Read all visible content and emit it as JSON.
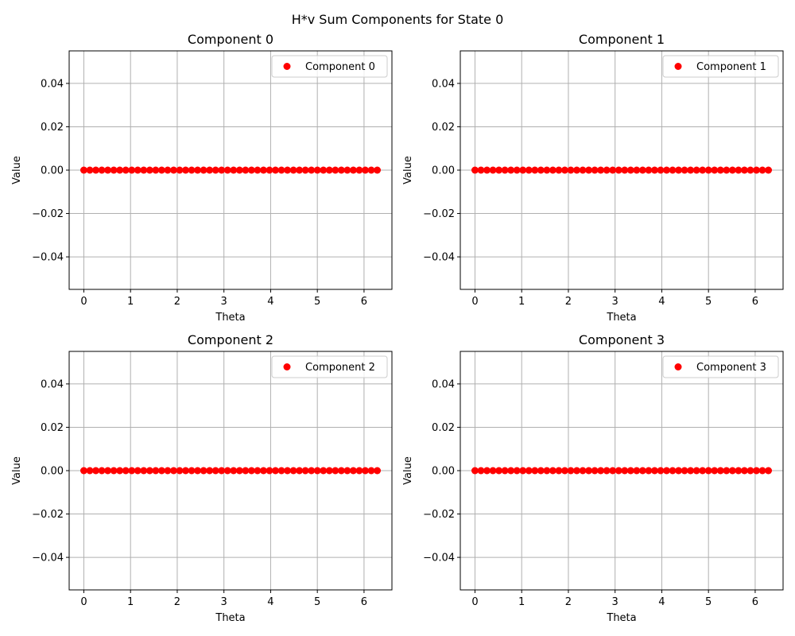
{
  "figure": {
    "title": "H*v Sum Components for State 0"
  },
  "chart_data": [
    {
      "type": "scatter",
      "title": "Component 0",
      "xlabel": "Theta",
      "ylabel": "Value",
      "xlim": [
        -0.3142,
        6.5973
      ],
      "ylim": [
        -0.055,
        0.055
      ],
      "xticks": [
        0,
        1,
        2,
        3,
        4,
        5,
        6
      ],
      "xtick_labels": [
        "0",
        "1",
        "2",
        "3",
        "4",
        "5",
        "6"
      ],
      "yticks": [
        -0.04,
        -0.02,
        0.0,
        0.02,
        0.04
      ],
      "ytick_labels": [
        "−0.04",
        "−0.02",
        "0.00",
        "0.02",
        "0.04"
      ],
      "grid": true,
      "legend_position": "top-right",
      "series": [
        {
          "name": "Component 0",
          "color": "#ff0000",
          "marker": "circle",
          "x_range": [
            0,
            6.2832
          ],
          "n_points": 50,
          "y_constant": 0.0
        }
      ]
    },
    {
      "type": "scatter",
      "title": "Component 1",
      "xlabel": "Theta",
      "ylabel": "Value",
      "xlim": [
        -0.3142,
        6.5973
      ],
      "ylim": [
        -0.055,
        0.055
      ],
      "xticks": [
        0,
        1,
        2,
        3,
        4,
        5,
        6
      ],
      "xtick_labels": [
        "0",
        "1",
        "2",
        "3",
        "4",
        "5",
        "6"
      ],
      "yticks": [
        -0.04,
        -0.02,
        0.0,
        0.02,
        0.04
      ],
      "ytick_labels": [
        "−0.04",
        "−0.02",
        "0.00",
        "0.02",
        "0.04"
      ],
      "grid": true,
      "legend_position": "top-right",
      "series": [
        {
          "name": "Component 1",
          "color": "#ff0000",
          "marker": "circle",
          "x_range": [
            0,
            6.2832
          ],
          "n_points": 50,
          "y_constant": 0.0
        }
      ]
    },
    {
      "type": "scatter",
      "title": "Component 2",
      "xlabel": "Theta",
      "ylabel": "Value",
      "xlim": [
        -0.3142,
        6.5973
      ],
      "ylim": [
        -0.055,
        0.055
      ],
      "xticks": [
        0,
        1,
        2,
        3,
        4,
        5,
        6
      ],
      "xtick_labels": [
        "0",
        "1",
        "2",
        "3",
        "4",
        "5",
        "6"
      ],
      "yticks": [
        -0.04,
        -0.02,
        0.0,
        0.02,
        0.04
      ],
      "ytick_labels": [
        "−0.04",
        "−0.02",
        "0.00",
        "0.02",
        "0.04"
      ],
      "grid": true,
      "legend_position": "top-right",
      "series": [
        {
          "name": "Component 2",
          "color": "#ff0000",
          "marker": "circle",
          "x_range": [
            0,
            6.2832
          ],
          "n_points": 50,
          "y_constant": 0.0
        }
      ]
    },
    {
      "type": "scatter",
      "title": "Component 3",
      "xlabel": "Theta",
      "ylabel": "Value",
      "xlim": [
        -0.3142,
        6.5973
      ],
      "ylim": [
        -0.055,
        0.055
      ],
      "xticks": [
        0,
        1,
        2,
        3,
        4,
        5,
        6
      ],
      "xtick_labels": [
        "0",
        "1",
        "2",
        "3",
        "4",
        "5",
        "6"
      ],
      "yticks": [
        -0.04,
        -0.02,
        0.0,
        0.02,
        0.04
      ],
      "ytick_labels": [
        "−0.04",
        "−0.02",
        "0.00",
        "0.02",
        "0.04"
      ],
      "grid": true,
      "legend_position": "top-right",
      "series": [
        {
          "name": "Component 3",
          "color": "#ff0000",
          "marker": "circle",
          "x_range": [
            0,
            6.2832
          ],
          "n_points": 50,
          "y_constant": 0.0
        }
      ]
    }
  ]
}
